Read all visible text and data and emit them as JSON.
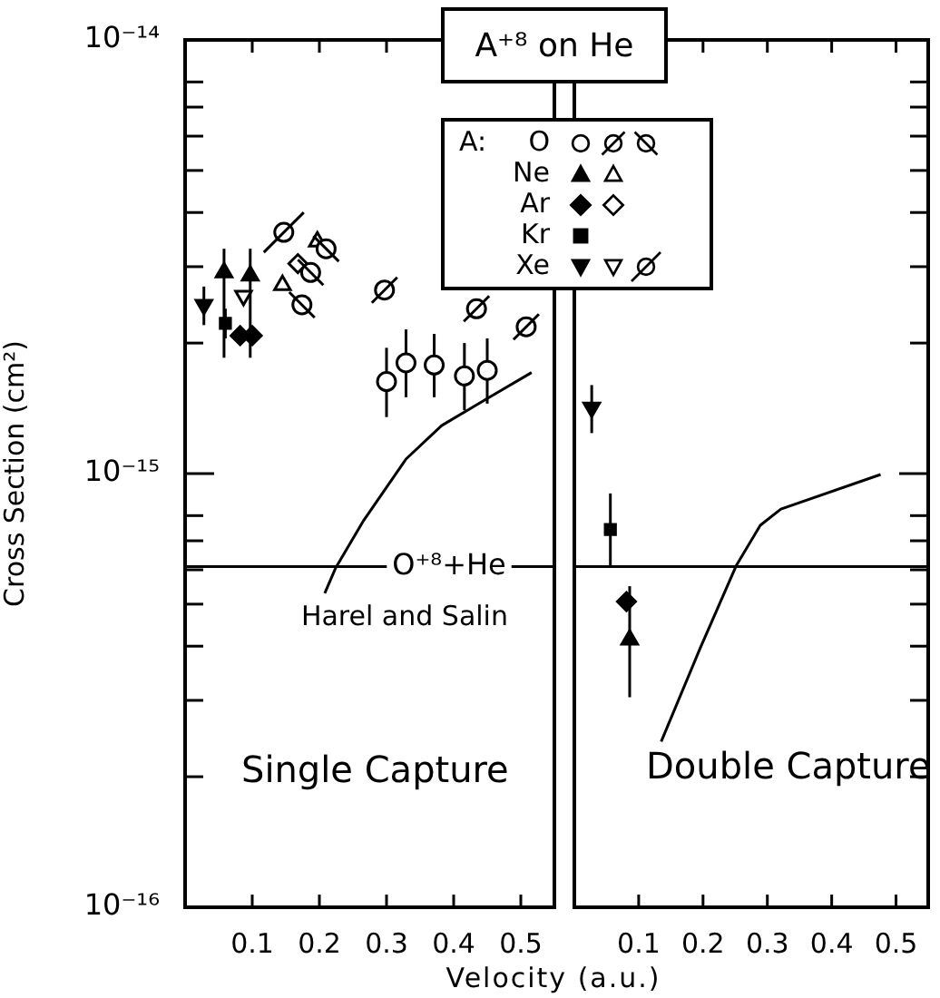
{
  "chart_data": [
    {
      "type": "scatter",
      "title": "A⁺⁸ on He",
      "xlabel": "Velocity (a.u.)",
      "ylabel": "Cross Section (cm²)",
      "legend_title": "A:",
      "legend": "top right",
      "log": "y",
      "xlim": [
        0,
        0.55
      ],
      "xticks": [
        0.1,
        0.2,
        0.3,
        0.4,
        0.5
      ],
      "ylim": [
        1e-16,
        1e-14
      ],
      "yticks": [
        {
          "value": 1e-16,
          "label": "10⁻¹⁶"
        },
        {
          "value": 2e-16,
          "label": null
        },
        {
          "value": 3e-16,
          "label": null
        },
        {
          "value": 4e-16,
          "label": null
        },
        {
          "value": 5e-16,
          "label": null
        },
        {
          "value": 6e-16,
          "label": null
        },
        {
          "value": 7e-16,
          "label": null
        },
        {
          "value": 8e-16,
          "label": null
        },
        {
          "value": 1e-15,
          "label": "10⁻¹⁵"
        },
        {
          "value": 2e-15,
          "label": null
        },
        {
          "value": 3e-15,
          "label": null
        },
        {
          "value": 4e-15,
          "label": null
        },
        {
          "value": 5e-15,
          "label": null
        },
        {
          "value": 6e-15,
          "label": null
        },
        {
          "value": 7e-15,
          "label": null
        },
        {
          "value": 8e-15,
          "label": null
        },
        {
          "value": 1e-14,
          "label": "10⁻¹⁴"
        }
      ],
      "annotations": [
        "Single Capture"
      ],
      "ref_lines": [
        {
          "axis": "y",
          "value": 6.1e-16,
          "label": "O⁺⁸+He"
        }
      ],
      "series": [
        {
          "name": "O",
          "marker": "circle-open",
          "color": "#000000",
          "x": [
            0.3,
            0.329,
            0.371,
            0.416,
            0.45
          ],
          "values": [
            1.63e-15,
            1.8e-15,
            1.78e-15,
            1.68e-15,
            1.73e-15
          ],
          "errors": [
            [
              1.35e-15,
              1.95e-15
            ],
            [
              1.5e-15,
              2.15e-15
            ],
            [
              1.5e-15,
              2.1e-15
            ],
            [
              1.4e-15,
              2e-15
            ],
            [
              1.45e-15,
              2.05e-15
            ]
          ]
        },
        {
          "marker": "circle-slash",
          "color": "#000000",
          "x": [
            0.297,
            0.434,
            0.508
          ],
          "values": [
            2.65e-15,
            2.4e-15,
            2.18e-15
          ]
        },
        {
          "marker": "circle-backslash",
          "color": "#000000",
          "x": [
            0.174,
            0.187,
            0.21
          ],
          "values": [
            2.45e-15,
            2.91e-15,
            3.3e-15
          ]
        },
        {
          "name": "Ne",
          "marker": "triangle",
          "color": "#000000",
          "x": [
            0.058,
            0.097
          ],
          "values": [
            2.91e-15,
            2.86e-15
          ],
          "errors": [
            [
              1.85e-15,
              3.3e-15
            ],
            [
              1.85e-15,
              3.3e-15
            ]
          ]
        },
        {
          "marker": "triangle-open",
          "color": "#000000",
          "x": [
            0.145,
            0.197
          ],
          "values": [
            2.72e-15,
            3.43e-15
          ]
        },
        {
          "name": "Ar",
          "marker": "diamond",
          "color": "#000000",
          "x": [
            0.082,
            0.1
          ],
          "values": [
            2.08e-15,
            2.08e-15
          ]
        },
        {
          "marker": "diamond-open",
          "color": "#000000",
          "x": [
            0.168
          ],
          "values": [
            3.05e-15
          ]
        },
        {
          "name": "Kr",
          "marker": "square",
          "color": "#000000",
          "x": [
            0.06
          ],
          "values": [
            2.22e-15
          ],
          "errors": [
            [
              2.05e-15,
              2.4e-15
            ]
          ]
        },
        {
          "name": "Xe",
          "marker": "triangle-down",
          "color": "#000000",
          "x": [
            0.028
          ],
          "values": [
            2.45e-15
          ],
          "errors": [
            [
              2.2e-15,
              2.7e-15
            ]
          ]
        },
        {
          "marker": "triangle-down-open",
          "color": "#000000",
          "x": [
            0.087
          ],
          "values": [
            2.57e-15
          ]
        },
        {
          "marker": "circle-slash-long",
          "color": "#000000",
          "x": [
            0.147
          ],
          "values": [
            3.6e-15
          ]
        },
        {
          "name": "Harel and Salin",
          "type": "line",
          "marker": "none",
          "color": "#000000",
          "x": [
            0.208,
            0.224,
            0.266,
            0.329,
            0.382,
            0.45,
            0.516
          ],
          "values": [
            5.3e-16,
            6.05e-16,
            7.8e-16,
            1.08e-15,
            1.29e-15,
            1.49e-15,
            1.71e-15
          ]
        }
      ]
    },
    {
      "type": "scatter",
      "tick_labels": "x",
      "log": "y",
      "xlim": [
        0,
        0.55
      ],
      "xticks": [
        0.1,
        0.2,
        0.3,
        0.4,
        0.5
      ],
      "ylim": [
        1e-16,
        1e-14
      ],
      "yticks": [
        1e-16,
        {
          "value": 2e-16,
          "label": null
        },
        {
          "value": 3e-16,
          "label": null
        },
        {
          "value": 4e-16,
          "label": null
        },
        {
          "value": 5e-16,
          "label": null
        },
        {
          "value": 6e-16,
          "label": null
        },
        {
          "value": 7e-16,
          "label": null
        },
        {
          "value": 8e-16,
          "label": null
        },
        1e-15,
        {
          "value": 2e-15,
          "label": null
        },
        {
          "value": 3e-15,
          "label": null
        },
        {
          "value": 4e-15,
          "label": null
        },
        {
          "value": 5e-15,
          "label": null
        },
        {
          "value": 6e-15,
          "label": null
        },
        {
          "value": 7e-15,
          "label": null
        },
        {
          "value": 8e-15,
          "label": null
        },
        1e-14
      ],
      "annotations": [
        "Double Capture"
      ],
      "ref_lines": [
        {
          "axis": "y",
          "value": 6.1e-16
        }
      ],
      "series": [
        {
          "marker": "triangle-down",
          "color": "#000000",
          "x": [
            0.027
          ],
          "values": [
            1.42e-15
          ],
          "errors": [
            [
              1.24e-15,
              1.6e-15
            ]
          ]
        },
        {
          "marker": "square",
          "color": "#000000",
          "x": [
            0.056
          ],
          "values": [
            7.43e-16
          ],
          "errors": [
            [
              6.1e-16,
              9e-16
            ]
          ]
        },
        {
          "marker": "diamond",
          "color": "#000000",
          "x": [
            0.081
          ],
          "values": [
            5.07e-16
          ]
        },
        {
          "marker": "triangle",
          "color": "#000000",
          "x": [
            0.086
          ],
          "values": [
            4.14e-16
          ],
          "errors": [
            [
              3.05e-16,
              5.5e-16
            ]
          ]
        },
        {
          "type": "line",
          "marker": "none",
          "color": "#000000",
          "x": [
            0.135,
            0.195,
            0.252,
            0.289,
            0.321,
            0.476
          ],
          "values": [
            2.41e-16,
            3.94e-16,
            6.15e-16,
            7.6e-16,
            8.28e-16,
            9.95e-16
          ]
        }
      ]
    }
  ]
}
